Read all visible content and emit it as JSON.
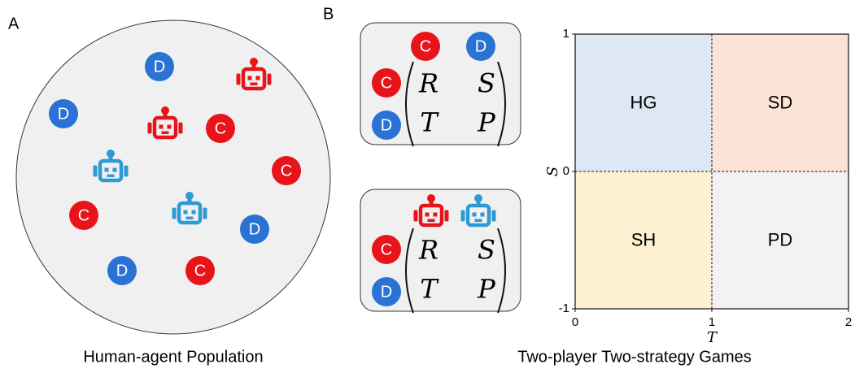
{
  "panel_a": {
    "label": "A",
    "caption": "Human-agent Population",
    "tokens": [
      "D",
      "D",
      "C",
      "C",
      "C",
      "D",
      "D",
      "C"
    ]
  },
  "panel_b": {
    "label": "B",
    "caption": "Two-player Two-strategy Games",
    "matrices": [
      {
        "col_labels": [
          "C",
          "D"
        ],
        "row_labels": [
          "C",
          "D"
        ],
        "entries": [
          [
            "R",
            "S"
          ],
          [
            "T",
            "P"
          ]
        ]
      },
      {
        "row_labels": [
          "C",
          "D"
        ],
        "entries": [
          [
            "R",
            "S"
          ],
          [
            "T",
            "P"
          ]
        ]
      }
    ],
    "plot": {
      "xlabel": "T",
      "ylabel": "S",
      "xlim": [
        0,
        2
      ],
      "ylim": [
        -1,
        1
      ],
      "xticks": [
        0,
        1,
        2
      ],
      "yticks": [
        -1,
        0,
        1
      ],
      "regions": [
        {
          "label": "HG",
          "color": "#dde8f4"
        },
        {
          "label": "SD",
          "color": "#fbe4d6"
        },
        {
          "label": "SH",
          "color": "#fdf1d1"
        },
        {
          "label": "PD",
          "color": "#f2f2f2"
        }
      ]
    }
  }
}
